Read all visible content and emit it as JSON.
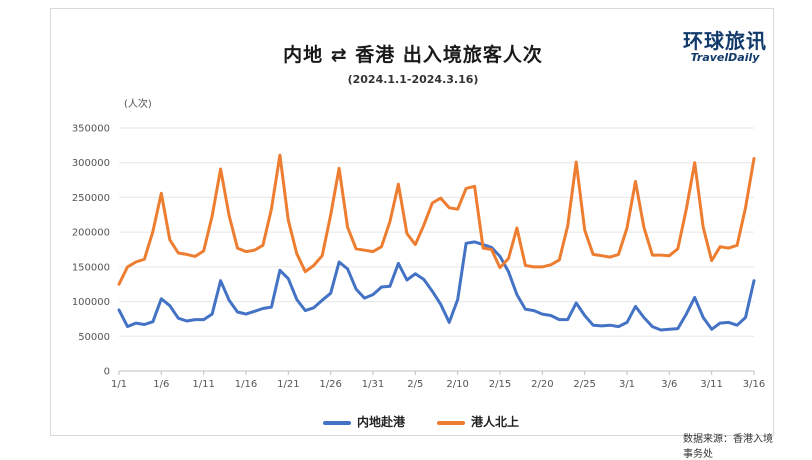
{
  "header": {
    "title": "内地 ⇄ 香港 出入境旅客人次",
    "subtitle": "(2024.1.1-2024.3.16)",
    "logo_cn": "环球旅讯",
    "logo_en": "TravelDaily"
  },
  "footer": {
    "source": "数据来源：香港入境事务处"
  },
  "chart_data": {
    "type": "line",
    "title": "内地 ⇄ 香港 出入境旅客人次",
    "subtitle": "(2024.1.1-2024.3.16)",
    "ylabel": "(人次)",
    "ylim": [
      0,
      350000
    ],
    "yticks": [
      "0",
      "50000",
      "100000",
      "150000",
      "200000",
      "250000",
      "300000",
      "350000"
    ],
    "xtick_labels": [
      "1/1",
      "1/6",
      "1/11",
      "1/16",
      "1/21",
      "1/26",
      "1/31",
      "2/5",
      "2/10",
      "2/15",
      "2/20",
      "2/25",
      "3/1",
      "3/6",
      "3/11",
      "3/16"
    ],
    "grid": "horizontal",
    "legend_position": "bottom",
    "x": [
      "1/1",
      "1/2",
      "1/3",
      "1/4",
      "1/5",
      "1/6",
      "1/7",
      "1/8",
      "1/9",
      "1/10",
      "1/11",
      "1/12",
      "1/13",
      "1/14",
      "1/15",
      "1/16",
      "1/17",
      "1/18",
      "1/19",
      "1/20",
      "1/21",
      "1/22",
      "1/23",
      "1/24",
      "1/25",
      "1/26",
      "1/27",
      "1/28",
      "1/29",
      "1/30",
      "1/31",
      "2/1",
      "2/2",
      "2/3",
      "2/4",
      "2/5",
      "2/6",
      "2/7",
      "2/8",
      "2/9",
      "2/10",
      "2/11",
      "2/12",
      "2/13",
      "2/14",
      "2/15",
      "2/16",
      "2/17",
      "2/18",
      "2/19",
      "2/20",
      "2/21",
      "2/22",
      "2/23",
      "2/24",
      "2/25",
      "2/26",
      "2/27",
      "2/28",
      "2/29",
      "3/1",
      "3/2",
      "3/3",
      "3/4",
      "3/5",
      "3/6",
      "3/7",
      "3/8",
      "3/9",
      "3/10",
      "3/11",
      "3/12",
      "3/13",
      "3/14",
      "3/15",
      "3/16"
    ],
    "series": [
      {
        "name": "内地赴港",
        "color": "#4472c4",
        "values": [
          88000,
          64000,
          69000,
          67000,
          71000,
          104000,
          94000,
          76000,
          72000,
          74000,
          74000,
          82000,
          130000,
          102000,
          85000,
          82000,
          86000,
          90000,
          92000,
          145000,
          133000,
          103000,
          87000,
          91000,
          102000,
          112000,
          157000,
          147000,
          118000,
          105000,
          110000,
          121000,
          122000,
          155000,
          131000,
          140000,
          132000,
          115000,
          96000,
          70000,
          103000,
          184000,
          186000,
          182000,
          178000,
          165000,
          143000,
          110000,
          89000,
          87000,
          82000,
          80000,
          74000,
          74000,
          98000,
          80000,
          66000,
          65000,
          66000,
          64000,
          70000,
          93000,
          77000,
          64000,
          59000,
          60000,
          61000,
          82000,
          106000,
          77000,
          60000,
          69000,
          70000,
          66000,
          77000,
          130000
        ]
      },
      {
        "name": "港人北上",
        "color": "#ed7d31",
        "values": [
          125000,
          150000,
          157000,
          161000,
          201000,
          256000,
          189000,
          170000,
          168000,
          165000,
          173000,
          223000,
          291000,
          224000,
          177000,
          172000,
          174000,
          181000,
          233000,
          311000,
          217000,
          169000,
          143000,
          152000,
          166000,
          225000,
          292000,
          207000,
          176000,
          174000,
          172000,
          179000,
          215000,
          269000,
          198000,
          182000,
          210000,
          242000,
          249000,
          235000,
          233000,
          263000,
          266000,
          177000,
          175000,
          149000,
          162000,
          206000,
          152000,
          150000,
          150000,
          153000,
          160000,
          209000,
          301000,
          203000,
          168000,
          166000,
          164000,
          168000,
          206000,
          273000,
          207000,
          167000,
          167000,
          166000,
          176000,
          233000,
          300000,
          207000,
          159000,
          179000,
          177000,
          181000,
          235000,
          306000
        ]
      }
    ]
  }
}
